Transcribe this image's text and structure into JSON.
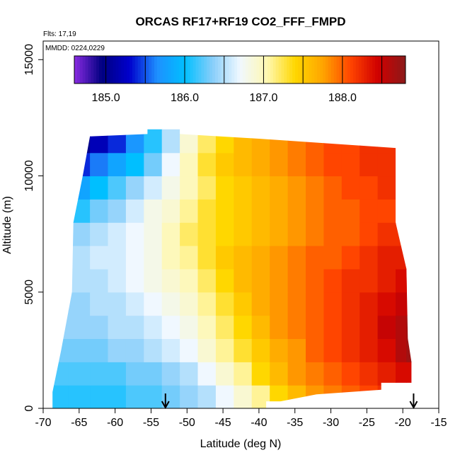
{
  "chart_data": {
    "type": "heatmap",
    "title": "ORCAS RF17+RF19 CO2_FFF_FMPD",
    "xlabel": "Latitude (deg N)",
    "ylabel": "Altitude (m)",
    "xlim": [
      -70,
      -15
    ],
    "ylim": [
      0,
      15800
    ],
    "x_ticks": [
      -70,
      -65,
      -60,
      -55,
      -50,
      -45,
      -40,
      -35,
      -30,
      -25,
      -20,
      -15
    ],
    "y_ticks": [
      0,
      5000,
      10000,
      15000
    ],
    "annotations": [
      "Flts: 17,19",
      "MMDD: 0224,0229"
    ],
    "colorbar": {
      "range": [
        184.6,
        188.8
      ],
      "tick_values": [
        185.0,
        186.0,
        187.0,
        188.0
      ],
      "tick_labels": [
        "185.0",
        "186.0",
        "187.0",
        "188.0"
      ],
      "stops": [
        "#8a2be2",
        "#000080",
        "#0000cd",
        "#1e90ff",
        "#00bfff",
        "#87cefa",
        "#f0f8ff",
        "#fff8b0",
        "#ffd700",
        "#ffa500",
        "#ff4500",
        "#d00000",
        "#8b1a1a"
      ]
    },
    "arrows_at_latitude": [
      -53,
      -18.5
    ],
    "field": {
      "description_units": "CO2 (ppm)",
      "lat": [
        -68,
        -65,
        -62,
        -60,
        -57,
        -55,
        -52,
        -50,
        -47,
        -45,
        -42,
        -40,
        -37,
        -35,
        -32,
        -30,
        -27,
        -25,
        -22,
        -20,
        -19
      ],
      "alt": [
        500,
        1500,
        2500,
        3500,
        4500,
        5500,
        6500,
        7500,
        8500,
        9500,
        10500,
        11500
      ],
      "values": [
        [
          186.1,
          186.1,
          186.1,
          186.1,
          186.2,
          186.2,
          186.3,
          186.4,
          186.5,
          186.7,
          186.9,
          187.1,
          187.4,
          187.6,
          187.8,
          187.9,
          188.0,
          188.1,
          188.2,
          188.3,
          188.3
        ],
        [
          186.2,
          186.2,
          186.2,
          186.2,
          186.3,
          186.3,
          186.4,
          186.5,
          186.7,
          186.9,
          187.1,
          187.4,
          187.6,
          187.8,
          187.9,
          188.0,
          188.1,
          188.2,
          188.3,
          188.4,
          188.4
        ],
        [
          186.3,
          186.3,
          186.3,
          186.4,
          186.4,
          186.5,
          186.6,
          186.7,
          186.9,
          187.1,
          187.3,
          187.5,
          187.7,
          187.8,
          188.0,
          188.1,
          188.2,
          188.3,
          188.4,
          188.6,
          188.7
        ],
        [
          186.4,
          186.4,
          186.4,
          186.5,
          186.5,
          186.6,
          186.7,
          186.8,
          187.0,
          187.2,
          187.4,
          187.6,
          187.8,
          187.9,
          188.0,
          188.1,
          188.2,
          188.3,
          188.5,
          188.6,
          188.7
        ],
        [
          186.4,
          186.4,
          186.5,
          186.5,
          186.6,
          186.7,
          186.8,
          186.9,
          187.1,
          187.3,
          187.5,
          187.7,
          187.8,
          187.9,
          188.0,
          188.1,
          188.2,
          188.3,
          188.4,
          188.5,
          188.5
        ],
        [
          186.5,
          186.5,
          186.5,
          186.6,
          186.7,
          186.8,
          186.9,
          187.0,
          187.2,
          187.4,
          187.6,
          187.7,
          187.8,
          187.9,
          188.0,
          188.1,
          188.2,
          188.2,
          188.3,
          188.4,
          188.4
        ],
        [
          186.5,
          186.5,
          186.6,
          186.6,
          186.7,
          186.8,
          187.0,
          187.1,
          187.3,
          187.5,
          187.6,
          187.7,
          187.8,
          187.9,
          188.0,
          188.0,
          188.1,
          188.2,
          188.3,
          188.3,
          188.3
        ],
        [
          186.3,
          186.4,
          186.5,
          186.6,
          186.7,
          186.8,
          187.0,
          187.2,
          187.3,
          187.4,
          187.5,
          187.6,
          187.7,
          187.8,
          187.9,
          188.0,
          188.0,
          188.1,
          188.2,
          188.2,
          188.2
        ],
        [
          186.0,
          186.1,
          186.3,
          186.4,
          186.6,
          186.8,
          186.9,
          187.1,
          187.3,
          187.4,
          187.5,
          187.6,
          187.7,
          187.8,
          187.9,
          188.0,
          188.0,
          188.1,
          188.1,
          188.2,
          188.2
        ],
        [
          185.7,
          185.8,
          186.0,
          186.2,
          186.4,
          186.6,
          186.8,
          187.0,
          187.2,
          187.4,
          187.5,
          187.6,
          187.7,
          187.8,
          187.9,
          188.0,
          188.1,
          188.1,
          188.2,
          188.2,
          188.2
        ],
        [
          185.3,
          185.4,
          185.6,
          185.8,
          186.0,
          186.3,
          186.7,
          187.0,
          187.3,
          187.5,
          187.6,
          187.7,
          187.8,
          187.9,
          188.0,
          188.1,
          188.1,
          188.2,
          188.2,
          188.3,
          188.3
        ],
        [
          184.9,
          185.0,
          185.2,
          185.4,
          185.7,
          186.1,
          186.5,
          186.9,
          187.2,
          187.4,
          187.6,
          187.7,
          187.8,
          187.9,
          188.0,
          188.1,
          188.1,
          188.2,
          188.2,
          188.3,
          188.3
        ]
      ]
    }
  }
}
